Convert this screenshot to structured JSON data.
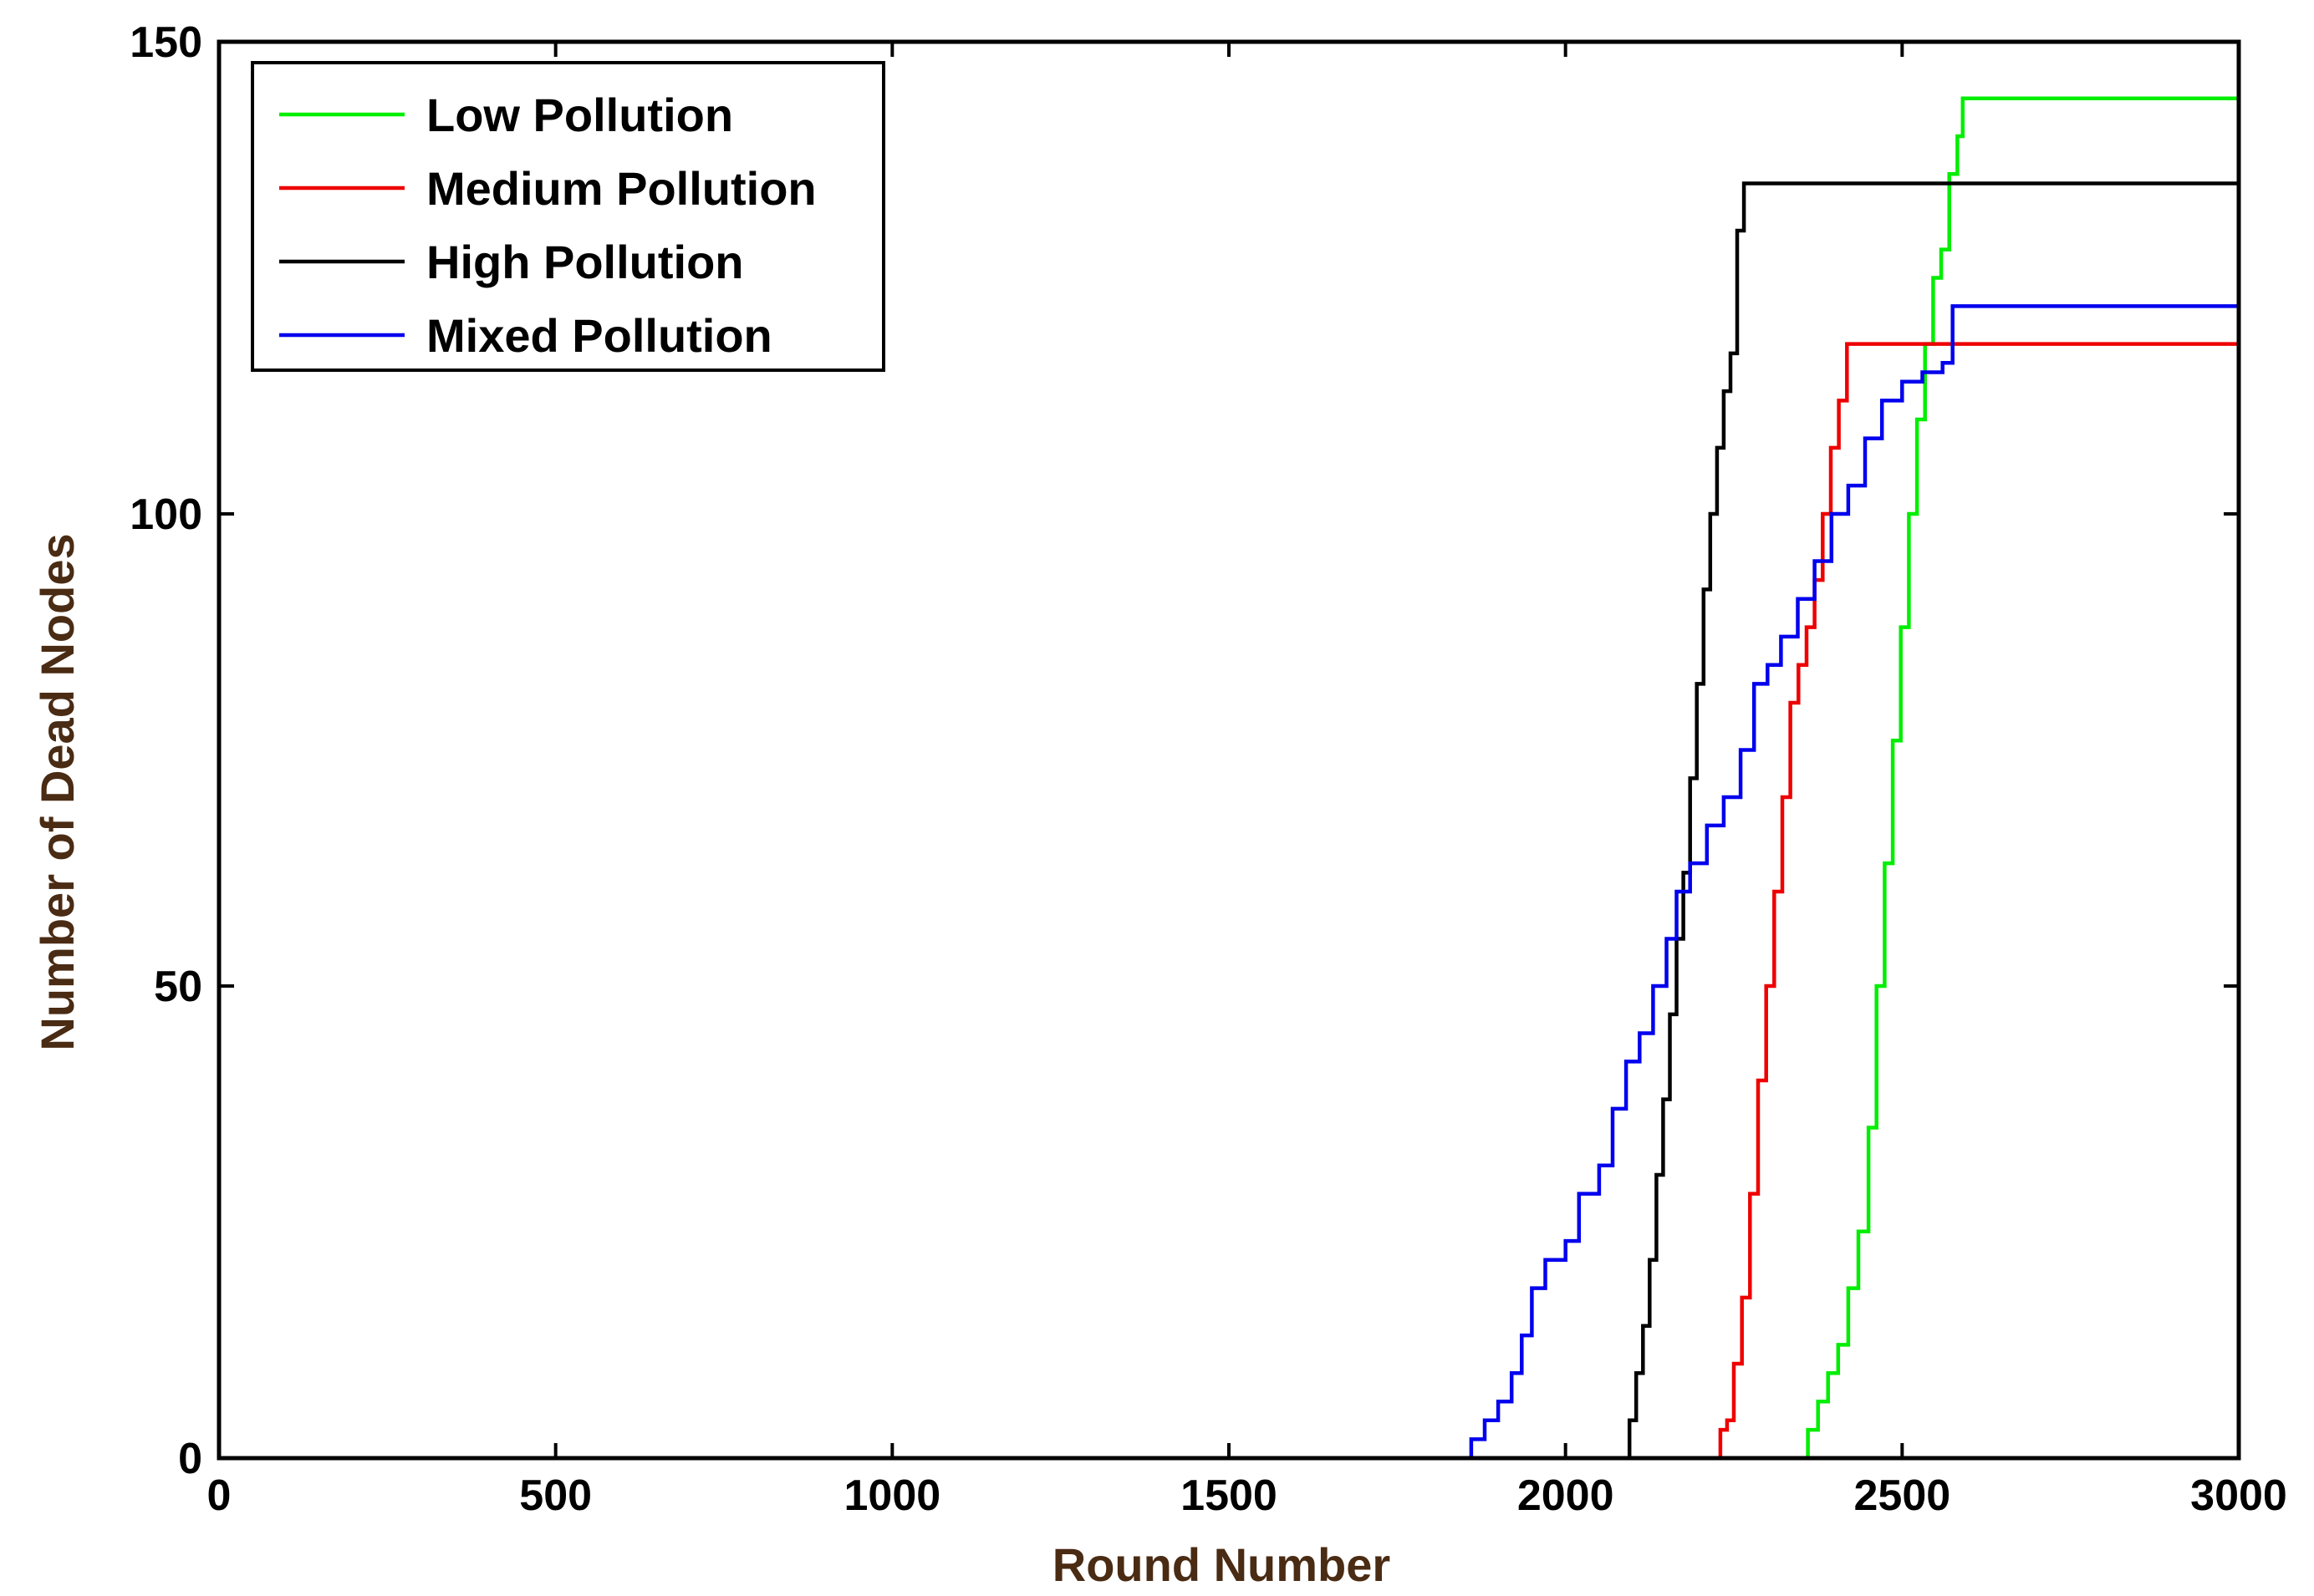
{
  "chart_data": {
    "type": "line",
    "title": "",
    "xlabel": "Round Number",
    "ylabel": "Number of Dead Nodes",
    "xlim": [
      0,
      3000
    ],
    "ylim": [
      0,
      150
    ],
    "xticks": [
      0,
      500,
      1000,
      1500,
      2000,
      2500,
      3000
    ],
    "yticks": [
      0,
      50,
      100,
      150
    ],
    "grid": false,
    "legend_position": "top-left",
    "series": [
      {
        "name": "Low Pollution",
        "color": "#00ee00",
        "points": [
          [
            0,
            0
          ],
          [
            2350,
            0
          ],
          [
            2360,
            3
          ],
          [
            2375,
            6
          ],
          [
            2390,
            9
          ],
          [
            2405,
            12
          ],
          [
            2420,
            18
          ],
          [
            2435,
            24
          ],
          [
            2450,
            35
          ],
          [
            2462,
            50
          ],
          [
            2474,
            63
          ],
          [
            2486,
            76
          ],
          [
            2498,
            88
          ],
          [
            2510,
            100
          ],
          [
            2522,
            110
          ],
          [
            2534,
            118
          ],
          [
            2546,
            125
          ],
          [
            2558,
            128
          ],
          [
            2570,
            136
          ],
          [
            2582,
            140
          ],
          [
            2590,
            144
          ],
          [
            3000,
            144
          ]
        ]
      },
      {
        "name": "Medium Pollution",
        "color": "#ee0000",
        "points": [
          [
            0,
            0
          ],
          [
            2220,
            0
          ],
          [
            2230,
            3
          ],
          [
            2240,
            4
          ],
          [
            2250,
            10
          ],
          [
            2262,
            17
          ],
          [
            2274,
            28
          ],
          [
            2286,
            40
          ],
          [
            2298,
            50
          ],
          [
            2310,
            60
          ],
          [
            2322,
            70
          ],
          [
            2334,
            80
          ],
          [
            2346,
            84
          ],
          [
            2358,
            88
          ],
          [
            2370,
            93
          ],
          [
            2382,
            100
          ],
          [
            2394,
            107
          ],
          [
            2406,
            112
          ],
          [
            2418,
            118
          ],
          [
            3000,
            118
          ]
        ]
      },
      {
        "name": "High Pollution",
        "color": "#000000",
        "points": [
          [
            0,
            0
          ],
          [
            2085,
            0
          ],
          [
            2095,
            4
          ],
          [
            2105,
            9
          ],
          [
            2115,
            14
          ],
          [
            2125,
            21
          ],
          [
            2135,
            30
          ],
          [
            2145,
            38
          ],
          [
            2155,
            47
          ],
          [
            2165,
            55
          ],
          [
            2175,
            62
          ],
          [
            2185,
            72
          ],
          [
            2195,
            82
          ],
          [
            2205,
            92
          ],
          [
            2215,
            100
          ],
          [
            2225,
            107
          ],
          [
            2235,
            113
          ],
          [
            2245,
            117
          ],
          [
            2255,
            130
          ],
          [
            2265,
            135
          ],
          [
            3000,
            135
          ]
        ]
      },
      {
        "name": "Mixed Pollution",
        "color": "#0000ee",
        "points": [
          [
            0,
            0
          ],
          [
            1840,
            0
          ],
          [
            1860,
            2
          ],
          [
            1880,
            4
          ],
          [
            1900,
            6
          ],
          [
            1920,
            9
          ],
          [
            1935,
            13
          ],
          [
            1950,
            18
          ],
          [
            1970,
            21
          ],
          [
            2000,
            23
          ],
          [
            2020,
            28
          ],
          [
            2050,
            31
          ],
          [
            2070,
            37
          ],
          [
            2090,
            42
          ],
          [
            2110,
            45
          ],
          [
            2130,
            50
          ],
          [
            2150,
            55
          ],
          [
            2165,
            60
          ],
          [
            2185,
            63
          ],
          [
            2210,
            67
          ],
          [
            2235,
            70
          ],
          [
            2260,
            75
          ],
          [
            2280,
            82
          ],
          [
            2300,
            84
          ],
          [
            2320,
            87
          ],
          [
            2345,
            91
          ],
          [
            2370,
            95
          ],
          [
            2395,
            100
          ],
          [
            2420,
            103
          ],
          [
            2445,
            108
          ],
          [
            2470,
            112
          ],
          [
            2500,
            114
          ],
          [
            2530,
            115
          ],
          [
            2560,
            116
          ],
          [
            2575,
            122
          ],
          [
            3000,
            122
          ]
        ]
      }
    ]
  }
}
